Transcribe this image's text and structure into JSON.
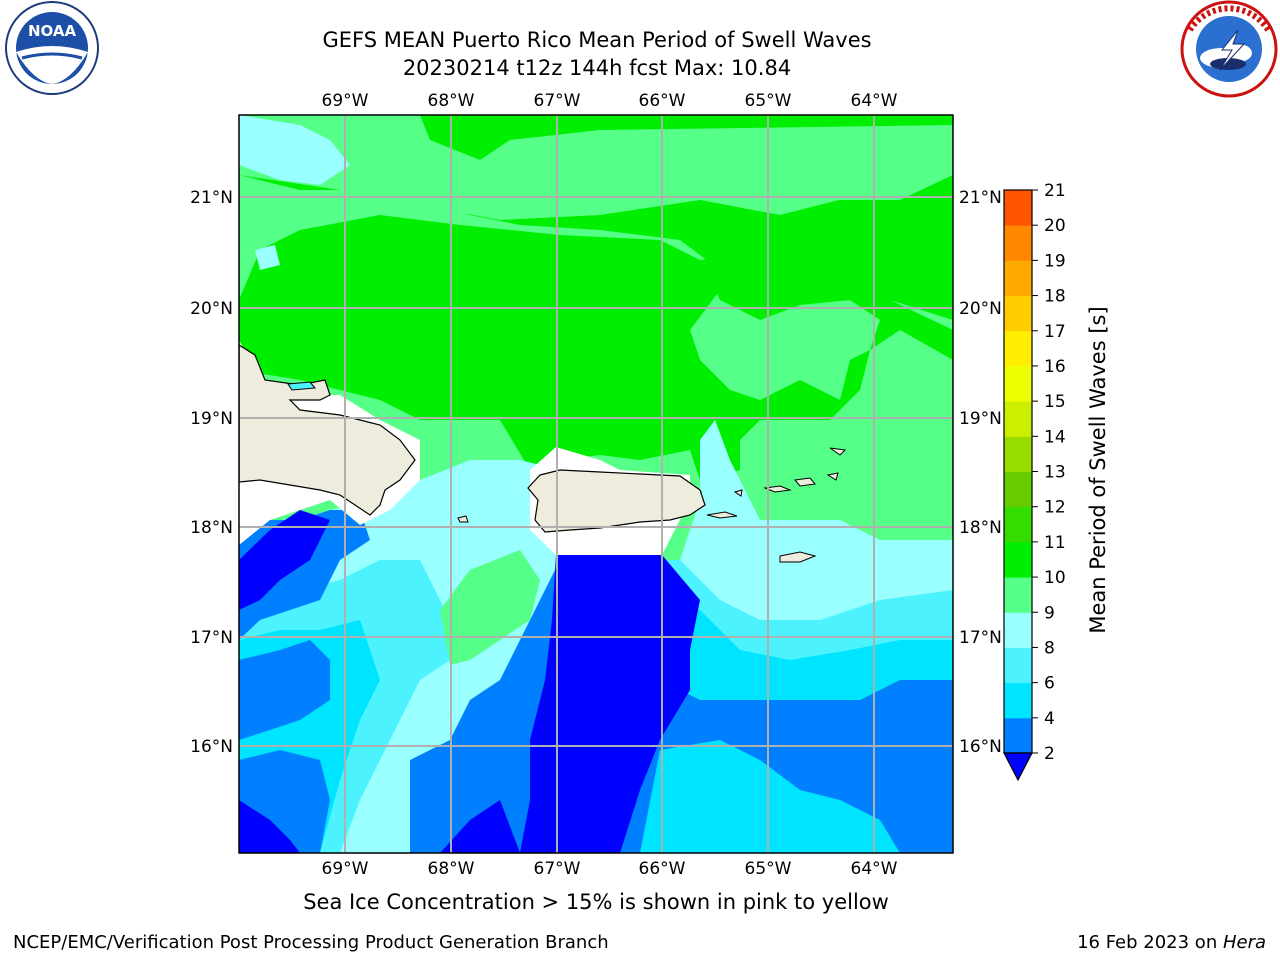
{
  "header": {
    "title_line1": "GEFS MEAN Puerto Rico Mean Period of Swell Waves",
    "title_line2": "20230214 t12z 144h fcst   Max: 10.84"
  },
  "logos": {
    "left": {
      "name": "noaa-logo",
      "text": "NOAA",
      "ring_text": "NATIONAL OCEANIC AND ATMOSPHERIC ADMINISTRATION · U.S. DEPARTMENT OF COMMERCE"
    },
    "right": {
      "name": "nws-logo",
      "ring_text": "NATIONAL WEATHER SERVICE"
    }
  },
  "map": {
    "lon_labels": [
      "69°W",
      "68°W",
      "67°W",
      "66°W",
      "65°W",
      "64°W"
    ],
    "lat_labels": [
      "21°N",
      "20°N",
      "19°N",
      "18°N",
      "17°N",
      "16°N"
    ],
    "land_color": "#eeecdc",
    "grid_color": "#b0b0b0"
  },
  "colorbar": {
    "label": "Mean Period of Swell Waves [s]",
    "ticks": [
      "2",
      "4",
      "6",
      "8",
      "9",
      "10",
      "11",
      "12",
      "13",
      "14",
      "15",
      "16",
      "17",
      "18",
      "19",
      "20",
      "21"
    ],
    "colors": [
      "#0000ff",
      "#0080ff",
      "#00e5ff",
      "#4df2ff",
      "#99ffff",
      "#55ff88",
      "#00ee00",
      "#33dd00",
      "#66cc00",
      "#99dd00",
      "#ccee00",
      "#eeff00",
      "#ffee00",
      "#ffcc00",
      "#ffaa00",
      "#ff8800",
      "#ff5500",
      "#ff2200"
    ],
    "under_color": "#0000ff"
  },
  "footer": {
    "note": "Sea Ice Concentration > 15% is shown in pink to yellow",
    "left": "NCEP/EMC/Verification Post Processing Product Generation Branch",
    "date": "16 Feb 2023 on ",
    "machine": "Hera"
  }
}
